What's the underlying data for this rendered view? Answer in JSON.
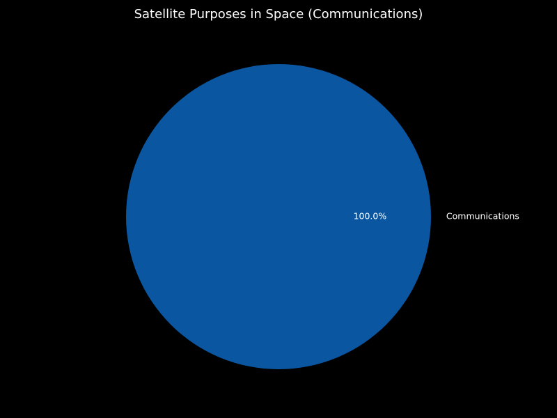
{
  "chart_data": {
    "type": "pie",
    "title": "Satellite Purposes in Space (Communications)",
    "slices": [
      {
        "label": "Communications",
        "value": 100.0,
        "percent_label": "100.0%",
        "color": "#0a56a1"
      }
    ],
    "background": "#000000",
    "text_color": "#ffffff",
    "legend": "none"
  }
}
